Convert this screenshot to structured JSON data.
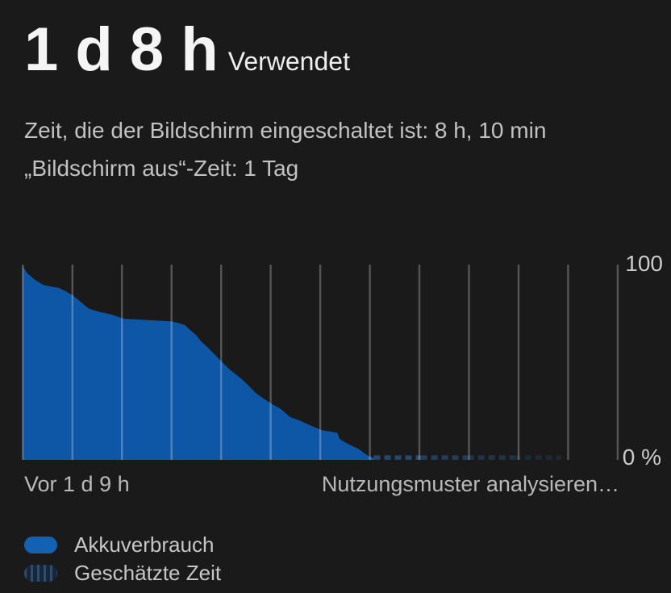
{
  "theme": {
    "background": "#1a1a1a",
    "area_blue": "#0e57a6",
    "legend_blue": "#1261b2",
    "estimated_blue": "#27486e",
    "gridline_color": "rgba(255,255,255,0.26)",
    "title_color": "#f5f5f5",
    "subtitle_color": "#c2c2c2"
  },
  "header": {
    "duration": "1 d 8 h",
    "duration_caption": "Verwendet",
    "screen_on_line": "Zeit, die der Bildschirm eingeschaltet ist: 8 h, 10 min",
    "screen_off_line": "„Bildschirm aus“-Zeit: 1 Tag"
  },
  "chart_data": {
    "type": "area",
    "description": "Battery level percentage declining over time",
    "x_axis": {
      "left_label": "Vor 1 d 9 h",
      "right_label": "Nutzungsmuster analysieren…"
    },
    "y_axis": {
      "top_label": "100",
      "bottom_label": "0 %",
      "min": 0,
      "max": 100,
      "unit": "%"
    },
    "gridline_count": 13,
    "grid_orientation": "vertical",
    "series": [
      {
        "name": "Akkuverbrauch",
        "type": "area",
        "color": "#0e57a6",
        "points": [
          [
            0.0,
            100.0
          ],
          [
            0.007,
            96.5
          ],
          [
            0.02,
            93.0
          ],
          [
            0.034,
            90.4
          ],
          [
            0.046,
            89.6
          ],
          [
            0.061,
            88.8
          ],
          [
            0.072,
            87.1
          ],
          [
            0.084,
            85.0
          ],
          [
            0.102,
            80.4
          ],
          [
            0.111,
            78.1
          ],
          [
            0.129,
            76.4
          ],
          [
            0.15,
            75.0
          ],
          [
            0.169,
            72.9
          ],
          [
            0.21,
            72.2
          ],
          [
            0.25,
            71.5
          ],
          [
            0.264,
            70.5
          ],
          [
            0.273,
            69.5
          ],
          [
            0.28,
            67.4
          ],
          [
            0.291,
            64.6
          ],
          [
            0.3,
            61.1
          ],
          [
            0.31,
            58.3
          ],
          [
            0.321,
            54.9
          ],
          [
            0.332,
            51.4
          ],
          [
            0.346,
            47.2
          ],
          [
            0.357,
            44.4
          ],
          [
            0.368,
            41.7
          ],
          [
            0.38,
            38.2
          ],
          [
            0.391,
            34.7
          ],
          [
            0.403,
            32.0
          ],
          [
            0.418,
            29.0
          ],
          [
            0.433,
            26.4
          ],
          [
            0.449,
            22.2
          ],
          [
            0.467,
            20.1
          ],
          [
            0.486,
            17.4
          ],
          [
            0.503,
            15.3
          ],
          [
            0.524,
            14.3
          ],
          [
            0.529,
            13.9
          ],
          [
            0.532,
            11.1
          ],
          [
            0.538,
            9.7
          ],
          [
            0.551,
            7.6
          ],
          [
            0.565,
            5.5
          ],
          [
            0.574,
            3.5
          ],
          [
            0.581,
            2.1
          ],
          [
            0.59,
            1.0
          ]
        ]
      },
      {
        "name": "Geschätzte Zeit",
        "type": "dashed-line",
        "color": "#27486e",
        "x_start": 0.59,
        "x_end": 0.905,
        "y_percent": 1.2
      }
    ]
  },
  "legend": {
    "items": [
      {
        "label": "Akkuverbrauch",
        "swatch": "solid-blue-pill"
      },
      {
        "label": "Geschätzte Zeit",
        "swatch": "striped-blue-pill"
      }
    ]
  }
}
